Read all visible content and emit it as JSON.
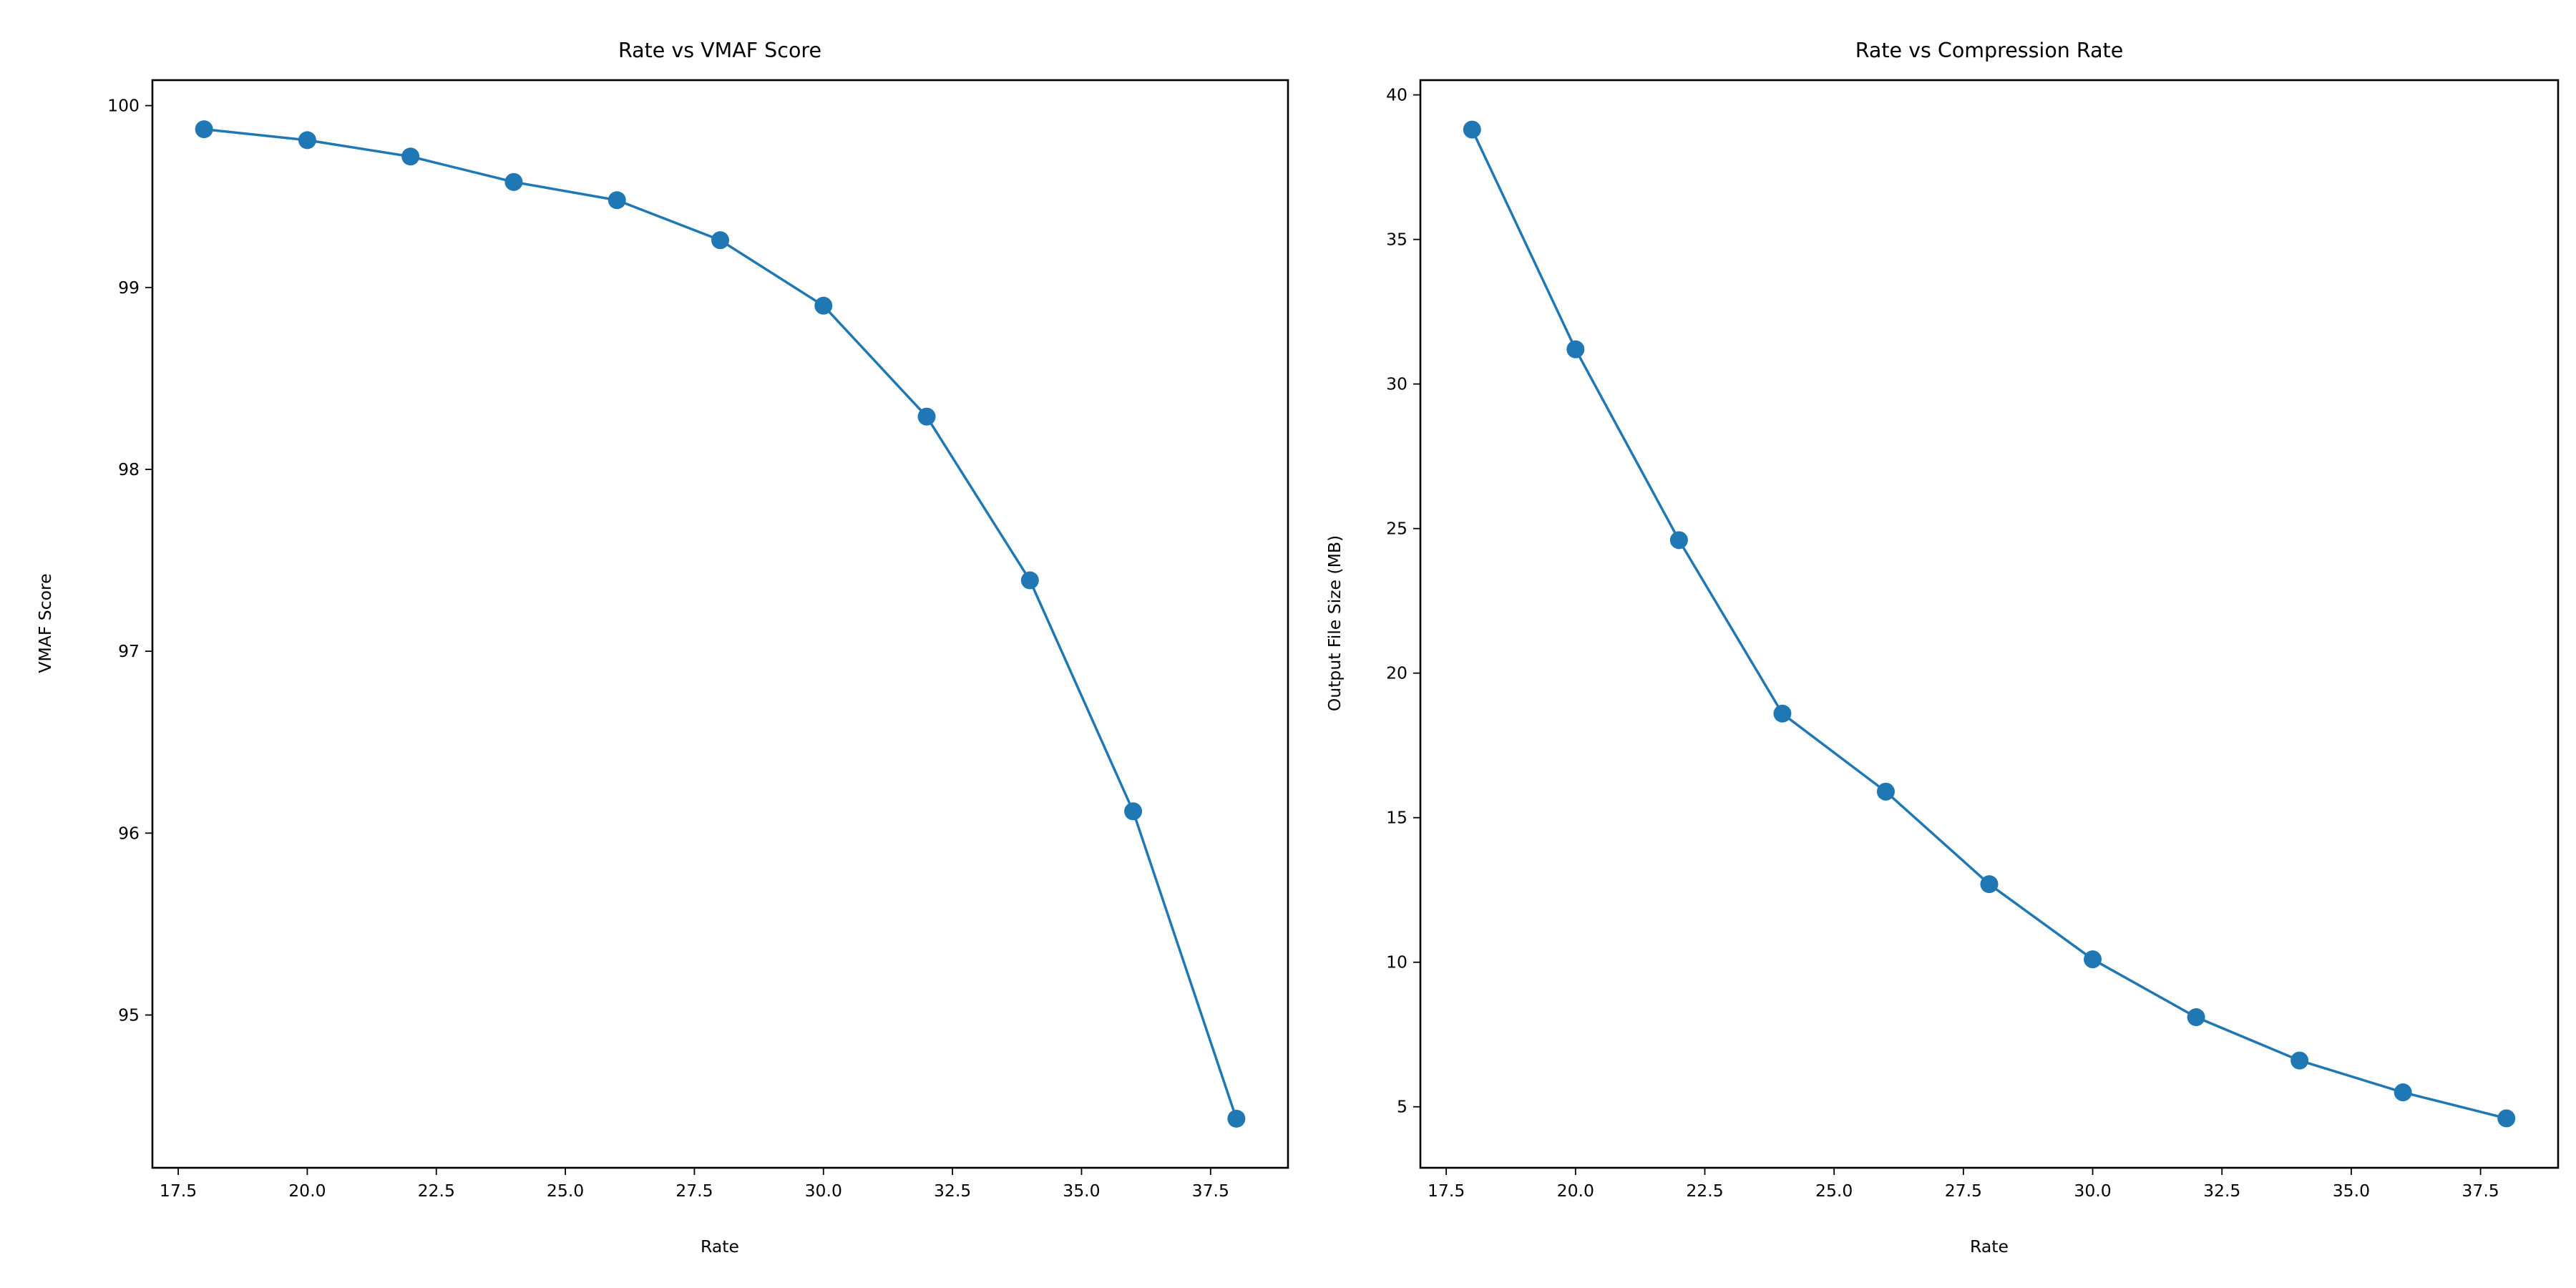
{
  "accent_color": "#1f77b4",
  "chart_data": [
    {
      "type": "line",
      "title": "Rate vs VMAF Score",
      "xlabel": "Rate",
      "ylabel": "VMAF Score",
      "x": [
        18,
        20,
        22,
        24,
        26,
        28,
        30,
        32,
        34,
        36,
        38
      ],
      "values": [
        99.87,
        99.81,
        99.72,
        99.58,
        99.48,
        99.26,
        98.9,
        98.29,
        97.39,
        96.12,
        94.43
      ],
      "xlim": [
        17.0,
        39.0
      ],
      "ylim": [
        94.16,
        100.14
      ],
      "xticks": [
        17.5,
        20.0,
        22.5,
        25.0,
        27.5,
        30.0,
        32.5,
        35.0,
        37.5
      ],
      "xtick_labels": [
        "17.5",
        "20.0",
        "22.5",
        "25.0",
        "27.5",
        "30.0",
        "32.5",
        "35.0",
        "37.5"
      ],
      "yticks": [
        95,
        96,
        97,
        98,
        99,
        100
      ],
      "ytick_labels": [
        "95",
        "96",
        "97",
        "98",
        "99",
        "100"
      ],
      "marker": "circle",
      "grid": false,
      "color": "#1f77b4"
    },
    {
      "type": "line",
      "title": "Rate vs Compression Rate",
      "xlabel": "Rate",
      "ylabel": "Output File Size (MB)",
      "x": [
        18,
        20,
        22,
        24,
        26,
        28,
        30,
        32,
        34,
        36,
        38
      ],
      "values": [
        38.8,
        31.2,
        24.6,
        18.6,
        15.9,
        12.7,
        10.1,
        8.1,
        6.6,
        5.5,
        4.6
      ],
      "xlim": [
        17.0,
        39.0
      ],
      "ylim": [
        2.89,
        40.51
      ],
      "xticks": [
        17.5,
        20.0,
        22.5,
        25.0,
        27.5,
        30.0,
        32.5,
        35.0,
        37.5
      ],
      "xtick_labels": [
        "17.5",
        "20.0",
        "22.5",
        "25.0",
        "27.5",
        "30.0",
        "32.5",
        "35.0",
        "37.5"
      ],
      "yticks": [
        5,
        10,
        15,
        20,
        25,
        30,
        35,
        40
      ],
      "ytick_labels": [
        "5",
        "10",
        "15",
        "20",
        "25",
        "30",
        "35",
        "40"
      ],
      "marker": "circle",
      "grid": false,
      "color": "#1f77b4"
    }
  ]
}
